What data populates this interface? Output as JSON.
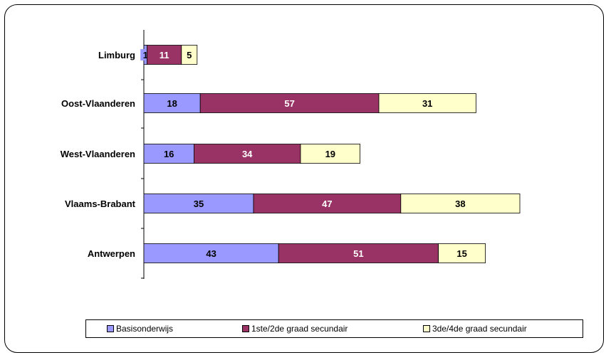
{
  "chart_data": {
    "type": "bar",
    "orientation": "horizontal",
    "stacked": true,
    "categories": [
      "Limburg",
      "Oost-Vlaanderen",
      "West-Vlaanderen",
      "Vlaams-Brabant",
      "Antwerpen"
    ],
    "series": [
      {
        "name": "Basisonderwijs",
        "color": "#9999ff",
        "values": [
          1,
          18,
          16,
          35,
          43
        ]
      },
      {
        "name": "1ste/2de graad secundair",
        "color": "#993366",
        "values": [
          11,
          57,
          34,
          47,
          51
        ]
      },
      {
        "name": "3de/4de graad secundair",
        "color": "#ffffcc",
        "values": [
          5,
          31,
          19,
          38,
          15
        ]
      }
    ],
    "title": "",
    "xlabel": "",
    "ylabel": "",
    "xlim": [
      0,
      130
    ],
    "grid": false,
    "legend_position": "bottom",
    "data_labels": true
  }
}
